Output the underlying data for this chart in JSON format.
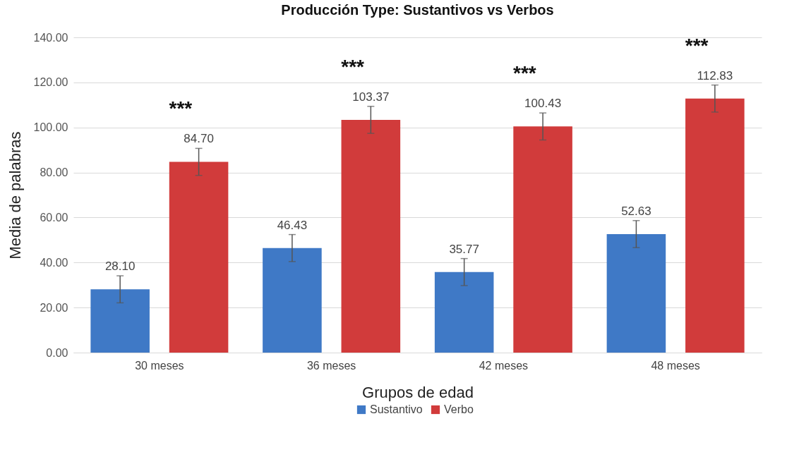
{
  "chart_data": {
    "type": "bar",
    "title": "Producción Type: Sustantivos vs Verbos",
    "xlabel": "Grupos de edad",
    "ylabel": "Media de palabras",
    "categories": [
      "30 meses",
      "36 meses",
      "42 meses",
      "48 meses"
    ],
    "series": [
      {
        "name": "Sustantivo",
        "color": "#3f79c6",
        "values": [
          28.1,
          46.43,
          35.77,
          52.63
        ],
        "errors": [
          6,
          6,
          6,
          6
        ],
        "value_labels": [
          "28.10",
          "46.43",
          "35.77",
          "52.63"
        ]
      },
      {
        "name": "Verbo",
        "color": "#d13b3b",
        "values": [
          84.7,
          103.37,
          100.43,
          112.83
        ],
        "errors": [
          6,
          6,
          6,
          6
        ],
        "value_labels": [
          "84.70",
          "103.37",
          "100.43",
          "112.83"
        ]
      }
    ],
    "ylim": [
      0,
      140
    ],
    "yticks": [
      {
        "value": 0,
        "label": "0.00"
      },
      {
        "value": 20,
        "label": "20.00"
      },
      {
        "value": 40,
        "label": "40.00"
      },
      {
        "value": 60,
        "label": "60.00"
      },
      {
        "value": 80,
        "label": "80.00"
      },
      {
        "value": 100,
        "label": "100.00"
      },
      {
        "value": 120,
        "label": "120.00"
      },
      {
        "value": 140,
        "label": "140.00"
      }
    ],
    "grid": "y",
    "legend": "bottom",
    "annotations": [
      "***",
      "***",
      "***",
      "***"
    ]
  }
}
